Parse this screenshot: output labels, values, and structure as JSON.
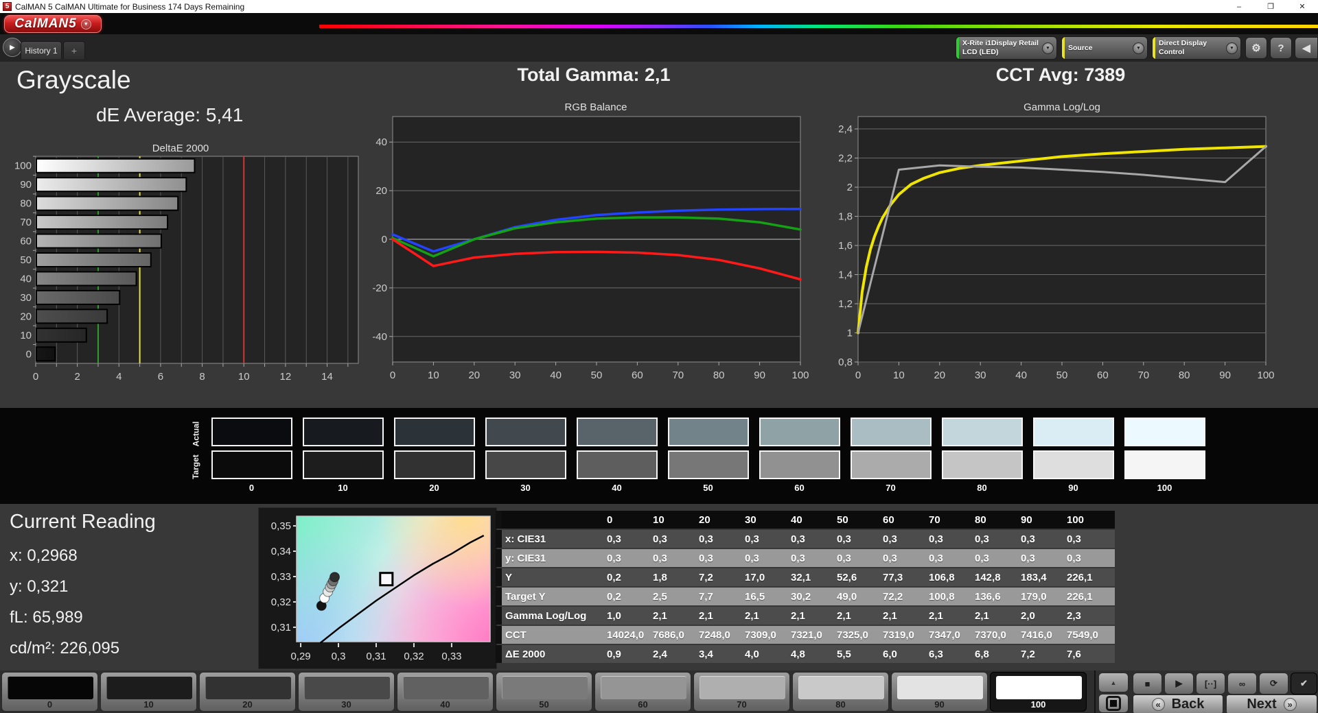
{
  "window": {
    "title": "CalMAN 5 CalMAN Ultimate for Business 174 Days Remaining",
    "icon_label": "5",
    "minimize_icon": "–",
    "maximize_icon": "❐",
    "close_icon": "✕"
  },
  "logo": {
    "label": "CalMAN5",
    "chevron": "▼"
  },
  "tabs": {
    "nav_icon": "▶",
    "history_label": "History 1",
    "add_label": "+"
  },
  "toolbar": {
    "meter": {
      "label_line1": "X-Rite i1Display Retail",
      "label_line2": "LCD (LED)",
      "stripe_color": "#2ecc2e",
      "chevron": "▼"
    },
    "source": {
      "label": "Source",
      "stripe_color": "#e8e22a",
      "chevron": "▼"
    },
    "display_control": {
      "label": "Direct Display Control",
      "stripe_color": "#e8e22a",
      "chevron": "▼"
    },
    "gear_icon": "⚙",
    "help_icon": "?",
    "panel_icon": "◀"
  },
  "summary": {
    "page_title": "Grayscale",
    "de_average": "dE Average: 5,41",
    "total_gamma": "Total Gamma: 2,1",
    "cct_avg": "CCT Avg: 7389"
  },
  "swatch_band": {
    "actual_label": "Actual",
    "target_label": "Target",
    "levels": [
      "0",
      "10",
      "20",
      "30",
      "40",
      "50",
      "60",
      "70",
      "80",
      "90",
      "100"
    ],
    "actual_colors": [
      "#0a0c10",
      "#171b20",
      "#2c3338",
      "#41494e",
      "#59646a",
      "#73838a",
      "#8fa2a6",
      "#a9bdc2",
      "#c3d6db",
      "#daedf4",
      "#ecfaff"
    ],
    "target_colors": [
      "#0b0b0b",
      "#1d1d1d",
      "#323232",
      "#474747",
      "#5e5e5e",
      "#777777",
      "#919191",
      "#ababab",
      "#c5c5c5",
      "#dedede",
      "#f5f5f5"
    ]
  },
  "current_reading": {
    "title": "Current Reading",
    "lines": [
      "x: 0,2968",
      "y: 0,321",
      "fL: 65,989",
      "cd/m²: 226,095"
    ]
  },
  "table": {
    "columns": [
      "",
      "0",
      "10",
      "20",
      "30",
      "40",
      "50",
      "60",
      "70",
      "80",
      "90",
      "100"
    ],
    "rows": [
      {
        "label": "x: CIE31",
        "tone": "dark",
        "values": [
          "0,3",
          "0,3",
          "0,3",
          "0,3",
          "0,3",
          "0,3",
          "0,3",
          "0,3",
          "0,3",
          "0,3",
          "0,3"
        ]
      },
      {
        "label": "y: CIE31",
        "tone": "light",
        "values": [
          "0,3",
          "0,3",
          "0,3",
          "0,3",
          "0,3",
          "0,3",
          "0,3",
          "0,3",
          "0,3",
          "0,3",
          "0,3"
        ]
      },
      {
        "label": "Y",
        "tone": "dark",
        "values": [
          "0,2",
          "1,8",
          "7,2",
          "17,0",
          "32,1",
          "52,6",
          "77,3",
          "106,8",
          "142,8",
          "183,4",
          "226,1"
        ]
      },
      {
        "label": "Target Y",
        "tone": "light",
        "values": [
          "0,2",
          "2,5",
          "7,7",
          "16,5",
          "30,2",
          "49,0",
          "72,2",
          "100,8",
          "136,6",
          "179,0",
          "226,1"
        ]
      },
      {
        "label": "Gamma Log/Log",
        "tone": "dark",
        "values": [
          "1,0",
          "2,1",
          "2,1",
          "2,1",
          "2,1",
          "2,1",
          "2,1",
          "2,1",
          "2,1",
          "2,0",
          "2,3"
        ]
      },
      {
        "label": "CCT",
        "tone": "light",
        "values": [
          "14024,0",
          "7686,0",
          "7248,0",
          "7309,0",
          "7321,0",
          "7325,0",
          "7319,0",
          "7347,0",
          "7370,0",
          "7416,0",
          "7549,0"
        ]
      },
      {
        "label": "ΔE 2000",
        "tone": "dark",
        "values": [
          "0,9",
          "2,4",
          "3,4",
          "4,0",
          "4,8",
          "5,5",
          "6,0",
          "6,3",
          "6,8",
          "7,2",
          "7,6"
        ]
      }
    ]
  },
  "bottom_bar": {
    "levels": [
      "0",
      "10",
      "20",
      "30",
      "40",
      "50",
      "60",
      "70",
      "80",
      "90",
      "100"
    ],
    "swatch_colors": [
      "#060606",
      "#1c1c1c",
      "#323232",
      "#494949",
      "#616161",
      "#7a7a7a",
      "#959595",
      "#afafaf",
      "#c9c9c9",
      "#e3e3e3",
      "#ffffff"
    ],
    "selected": "100",
    "collapse_icon": "▲",
    "controls": [
      "■",
      "▶",
      "[··]",
      "∞",
      "⟳",
      "✔"
    ],
    "back_label": "Back",
    "next_label": "Next",
    "back_icon": "«",
    "next_icon": "»"
  },
  "chart_data": [
    {
      "id": "deltae",
      "type": "bar",
      "orientation": "horizontal",
      "title": "DeltaE 2000",
      "categories": [
        "0",
        "10",
        "20",
        "30",
        "40",
        "50",
        "60",
        "70",
        "80",
        "90",
        "100"
      ],
      "values": [
        0.9,
        2.4,
        3.4,
        4.0,
        4.8,
        5.5,
        6.0,
        6.3,
        6.8,
        7.2,
        7.6
      ],
      "xlim": [
        0,
        15.5
      ],
      "xticks": [
        0,
        2,
        4,
        6,
        8,
        10,
        12,
        14
      ],
      "bar_gradients": [
        [
          "#161616",
          "#101010"
        ],
        [
          "#323232",
          "#262626"
        ],
        [
          "#4e4e4e",
          "#3a3a3a"
        ],
        [
          "#6a6a6a",
          "#4a4a4a"
        ],
        [
          "#868686",
          "#585858"
        ],
        [
          "#9e9e9e",
          "#646464"
        ],
        [
          "#b4b4b4",
          "#6f6f6f"
        ],
        [
          "#c8c8c8",
          "#7a7a7a"
        ],
        [
          "#dcdcdc",
          "#858585"
        ],
        [
          "#ececec",
          "#8f8f8f"
        ],
        [
          "#ffffff",
          "#9a9a9a"
        ]
      ],
      "reference_lines": [
        {
          "value": 3,
          "color": "#2f9e2f"
        },
        {
          "value": 5,
          "color": "#e8e23a"
        },
        {
          "value": 10,
          "color": "#d23535"
        }
      ]
    },
    {
      "id": "rgb_balance",
      "type": "line",
      "title": "RGB Balance",
      "x": [
        0,
        10,
        20,
        30,
        40,
        50,
        60,
        70,
        80,
        90,
        100
      ],
      "xticks": [
        0,
        10,
        20,
        30,
        40,
        50,
        60,
        70,
        80,
        90,
        100
      ],
      "ylim": [
        -50.5,
        50.5
      ],
      "yticks": [
        {
          "v": 40,
          "label": "40"
        },
        {
          "v": 20,
          "label": "20"
        },
        {
          "v": 0,
          "label": "0"
        },
        {
          "v": -20,
          "label": "-20"
        },
        {
          "v": -40,
          "label": "-40"
        }
      ],
      "series": [
        {
          "name": "blue",
          "color": "#2244ff",
          "values": [
            2,
            -5,
            0,
            5,
            8,
            10,
            11,
            11.8,
            12.2,
            12.4,
            12.5
          ]
        },
        {
          "name": "green",
          "color": "#16a016",
          "values": [
            0.5,
            -7,
            0,
            4.5,
            7,
            8.5,
            9,
            9,
            8.5,
            7,
            4
          ]
        },
        {
          "name": "red",
          "color": "#ff1a1a",
          "values": [
            0,
            -11,
            -7.5,
            -6,
            -5.3,
            -5.2,
            -5.5,
            -6.5,
            -8.5,
            -12,
            -16.5
          ]
        }
      ]
    },
    {
      "id": "gamma_loglog",
      "type": "line",
      "title": "Gamma Log/Log",
      "x": [
        0,
        10,
        20,
        30,
        40,
        50,
        60,
        70,
        80,
        90,
        100
      ],
      "xticks": [
        0,
        10,
        20,
        30,
        40,
        50,
        60,
        70,
        80,
        90,
        100
      ],
      "ylim": [
        0.8,
        2.485
      ],
      "yticks": [
        {
          "v": 2.4,
          "label": "2,4"
        },
        {
          "v": 2.2,
          "label": "2,2"
        },
        {
          "v": 2.0,
          "label": "2"
        },
        {
          "v": 1.8,
          "label": "1,8"
        },
        {
          "v": 1.6,
          "label": "1,6"
        },
        {
          "v": 1.4,
          "label": "1,4"
        },
        {
          "v": 1.2,
          "label": "1,2"
        },
        {
          "v": 1.0,
          "label": "1"
        },
        {
          "v": 0.8,
          "label": "0,8"
        }
      ],
      "series": [
        {
          "name": "target",
          "color": "#f0e500",
          "width": 4,
          "x": [
            0,
            1,
            2,
            3,
            4,
            5,
            6,
            8,
            10,
            13,
            16,
            20,
            25,
            30,
            40,
            50,
            60,
            70,
            80,
            90,
            100
          ],
          "values": [
            1.0,
            1.28,
            1.45,
            1.57,
            1.66,
            1.73,
            1.79,
            1.88,
            1.95,
            2.02,
            2.06,
            2.1,
            2.13,
            2.15,
            2.18,
            2.21,
            2.23,
            2.245,
            2.26,
            2.27,
            2.28
          ]
        },
        {
          "name": "measured",
          "color": "#a8a8a8",
          "width": 3,
          "x": [
            0,
            10,
            20,
            30,
            40,
            50,
            60,
            70,
            80,
            90,
            100
          ],
          "values": [
            1.0,
            2.12,
            2.15,
            2.14,
            2.135,
            2.12,
            2.105,
            2.085,
            2.06,
            2.035,
            2.28
          ]
        }
      ]
    },
    {
      "id": "cie_chart",
      "type": "scatter",
      "title": "",
      "xlim": [
        0.2889,
        0.3402
      ],
      "ylim": [
        0.3043,
        0.3538
      ],
      "xticks": [
        {
          "v": 0.29,
          "label": "0,29"
        },
        {
          "v": 0.3,
          "label": "0,3"
        },
        {
          "v": 0.31,
          "label": "0,31"
        },
        {
          "v": 0.32,
          "label": "0,32"
        },
        {
          "v": 0.33,
          "label": "0,33"
        }
      ],
      "yticks": [
        {
          "v": 0.35,
          "label": "0,35"
        },
        {
          "v": 0.34,
          "label": "0,34"
        },
        {
          "v": 0.33,
          "label": "0,33"
        },
        {
          "v": 0.32,
          "label": "0,32"
        },
        {
          "v": 0.31,
          "label": "0,31"
        }
      ],
      "locus": [
        [
          0.2952,
          0.3038
        ],
        [
          0.3,
          0.3095
        ],
        [
          0.305,
          0.315
        ],
        [
          0.31,
          0.3205
        ],
        [
          0.315,
          0.3255
        ],
        [
          0.32,
          0.3305
        ],
        [
          0.325,
          0.335
        ],
        [
          0.33,
          0.339
        ],
        [
          0.335,
          0.3435
        ],
        [
          0.3385,
          0.3462
        ]
      ],
      "points": [
        {
          "x": 0.2955,
          "y": 0.3185,
          "color": "#141414"
        },
        {
          "x": 0.2963,
          "y": 0.3215,
          "color": "#ffffff"
        },
        {
          "x": 0.2972,
          "y": 0.324,
          "color": "#e8e8e8"
        },
        {
          "x": 0.2978,
          "y": 0.3258,
          "color": "#cccccc"
        },
        {
          "x": 0.2982,
          "y": 0.327,
          "color": "#a8a8a8"
        },
        {
          "x": 0.2986,
          "y": 0.3282,
          "color": "#6f6f6f"
        },
        {
          "x": 0.299,
          "y": 0.3298,
          "color": "#2e2e2e"
        }
      ],
      "target_point": {
        "x": 0.3127,
        "y": 0.329
      }
    }
  ]
}
